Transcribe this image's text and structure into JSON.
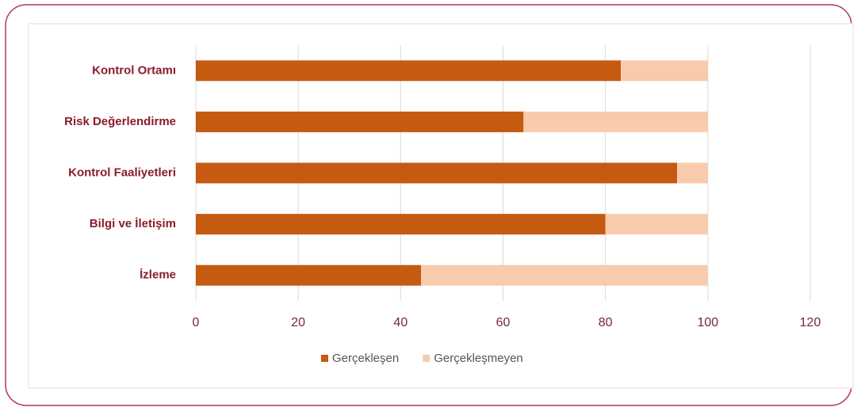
{
  "chart_data": {
    "type": "bar",
    "orientation": "horizontal",
    "stacked": true,
    "categories": [
      "Kontrol Ortamı",
      "Risk Değerlendirme",
      "Kontrol Faaliyetleri",
      "Bilgi ve İletişim",
      "İzleme"
    ],
    "series": [
      {
        "name": "Gerçekleşen",
        "color": "#c55a11",
        "values": [
          83,
          64,
          94,
          80,
          44
        ]
      },
      {
        "name": "Gerçekleşmeyen",
        "color": "#f8cbad",
        "values": [
          17,
          36,
          6,
          20,
          56
        ]
      }
    ],
    "xlim": [
      0,
      120
    ],
    "xticks": [
      0,
      20,
      40,
      60,
      80,
      100,
      120
    ],
    "grid": true,
    "legend": "bottom"
  }
}
